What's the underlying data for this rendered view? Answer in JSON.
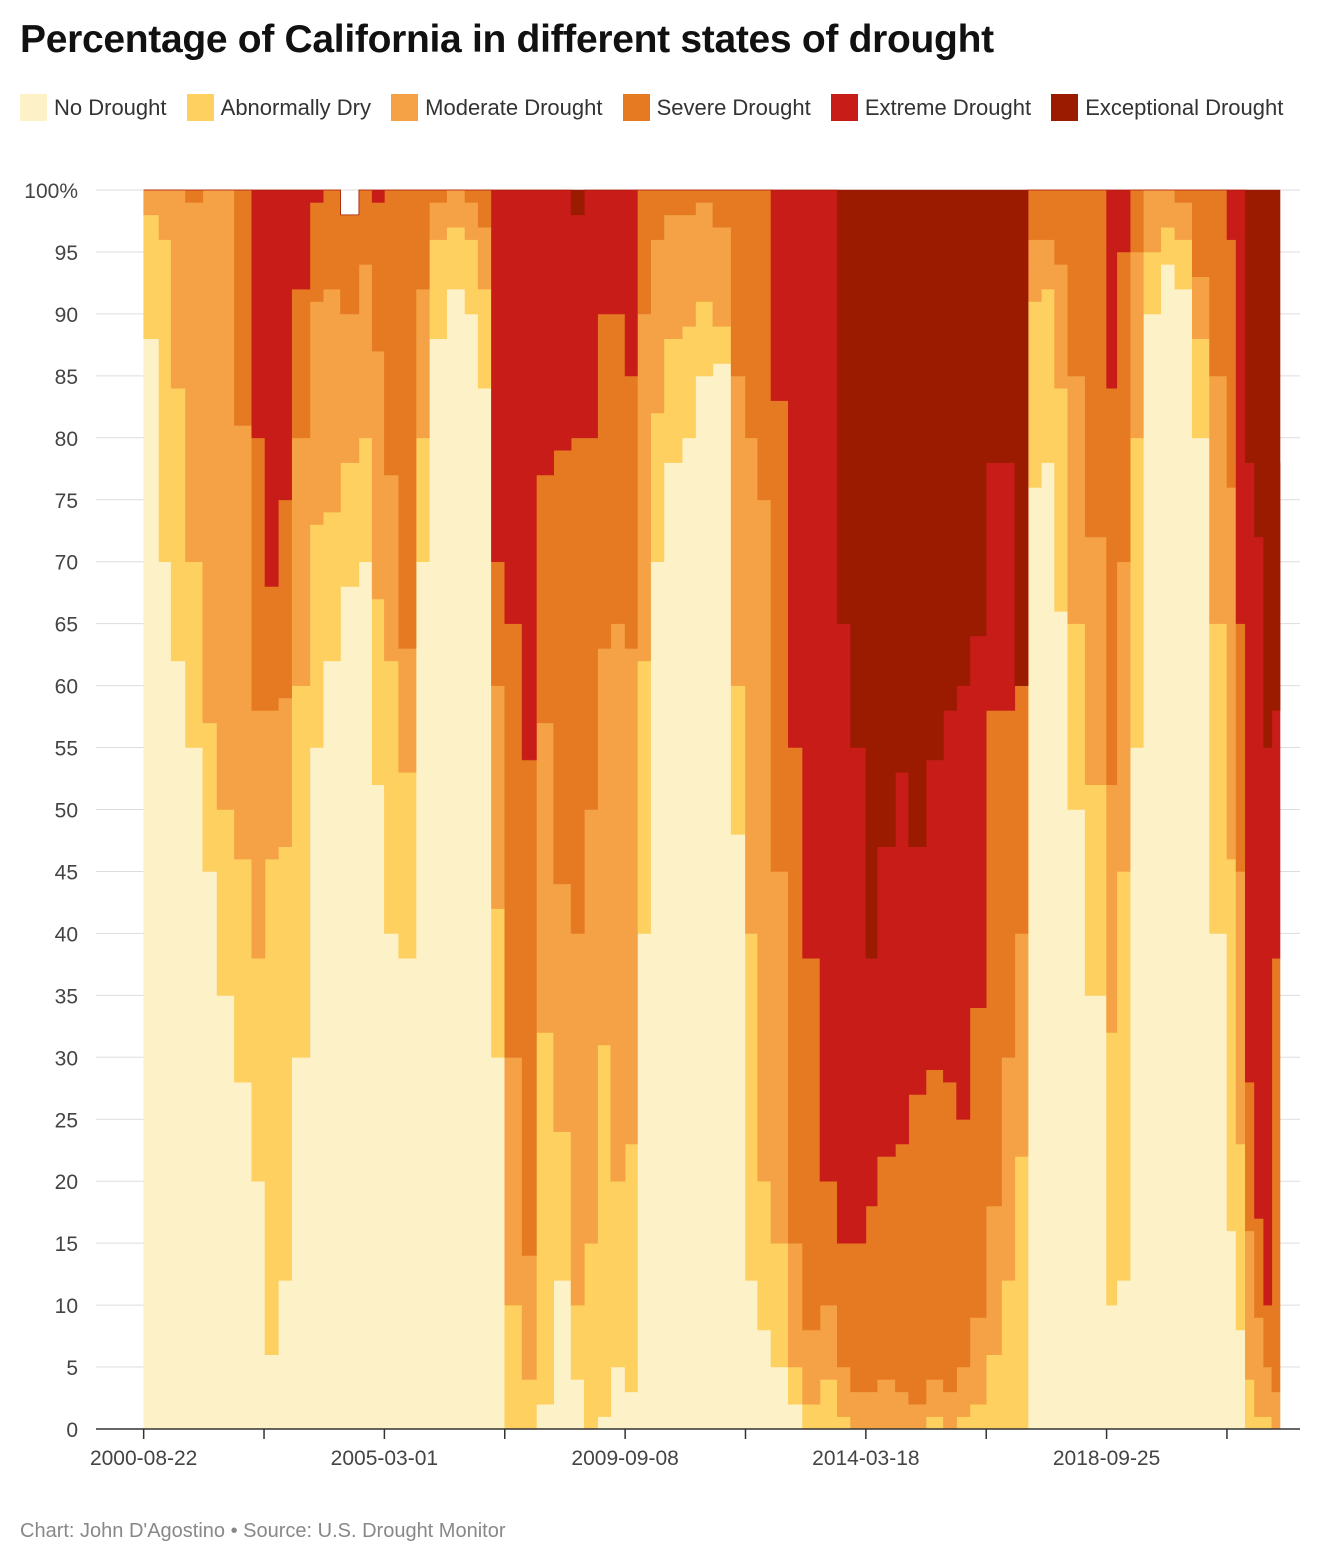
{
  "title": "Percentage of California in different states of drought",
  "footer": "Chart: John D'Agostino • Source: U.S. Drought Monitor",
  "chart_data": {
    "type": "area",
    "stacked": true,
    "title": "Percentage of California in different states of drought",
    "xlabel": "",
    "ylabel": "",
    "ylim": [
      0,
      100
    ],
    "yticks": [
      0,
      5,
      10,
      15,
      20,
      25,
      30,
      35,
      40,
      45,
      50,
      55,
      60,
      65,
      70,
      75,
      80,
      85,
      90,
      95,
      100
    ],
    "ytick_labels": [
      "0",
      "5",
      "10",
      "15",
      "20",
      "25",
      "30",
      "35",
      "40",
      "45",
      "50",
      "55",
      "60",
      "65",
      "70",
      "75",
      "80",
      "85",
      "90",
      "95",
      "100%"
    ],
    "xlim": [
      "2000-01-04",
      "2021-12-28"
    ],
    "xtick_labels": [
      "2000-08-22",
      "2005-03-01",
      "2009-09-08",
      "2014-03-18",
      "2018-09-25"
    ],
    "xtick_marks": [
      "2000-08-22",
      "2002-11-26",
      "2005-03-01",
      "2007-06-05",
      "2009-09-08",
      "2011-12-13",
      "2014-03-18",
      "2016-06-21",
      "2018-09-25",
      "2020-12-29"
    ],
    "grid": true,
    "legend_position": "top",
    "x": [
      "2000-08-22",
      "2000-12-05",
      "2001-02-27",
      "2001-06-05",
      "2001-10-02",
      "2002-01-08",
      "2002-05-07",
      "2002-09-03",
      "2002-12-03",
      "2003-03-04",
      "2003-06-03",
      "2003-10-07",
      "2004-01-06",
      "2004-05-04",
      "2004-09-07",
      "2004-12-07",
      "2005-03-01",
      "2005-06-07",
      "2005-10-04",
      "2006-01-03",
      "2006-05-02",
      "2006-09-05",
      "2006-12-05",
      "2007-03-06",
      "2007-06-05",
      "2007-10-02",
      "2008-01-08",
      "2008-05-06",
      "2008-09-02",
      "2008-12-02",
      "2009-03-03",
      "2009-06-02",
      "2009-09-08",
      "2009-12-01",
      "2010-03-02",
      "2010-06-01",
      "2010-10-05",
      "2011-01-04",
      "2011-05-03",
      "2011-09-06",
      "2011-12-13",
      "2012-03-06",
      "2012-06-05",
      "2012-10-02",
      "2013-01-08",
      "2013-05-07",
      "2013-09-03",
      "2013-12-03",
      "2014-03-18",
      "2014-06-03",
      "2014-10-07",
      "2015-01-06",
      "2015-05-05",
      "2015-09-01",
      "2015-12-01",
      "2016-03-01",
      "2016-06-21",
      "2016-10-04",
      "2017-01-03",
      "2017-04-04",
      "2017-07-04",
      "2017-10-03",
      "2018-01-02",
      "2018-05-01",
      "2018-09-25",
      "2018-12-04",
      "2019-03-05",
      "2019-06-04",
      "2019-10-01",
      "2020-01-07",
      "2020-05-05",
      "2020-09-01",
      "2020-12-29",
      "2021-03-02",
      "2021-05-04",
      "2021-07-06",
      "2021-09-07",
      "2021-11-02",
      "2021-12-28"
    ],
    "series": [
      {
        "name": "No Drought",
        "color": "#fdf1c7",
        "values": [
          88,
          70,
          62,
          55,
          45,
          35,
          28,
          20,
          6,
          12,
          30,
          55,
          62,
          68,
          70,
          52,
          40,
          38,
          70,
          88,
          92,
          90,
          84,
          30,
          0,
          0,
          2,
          12,
          4,
          0,
          1,
          5,
          3,
          40,
          70,
          78,
          80,
          85,
          86,
          48,
          12,
          8,
          5,
          2,
          0,
          0,
          0,
          0,
          0,
          0,
          0,
          0,
          0,
          0,
          0,
          0,
          0,
          0,
          0,
          76,
          78,
          66,
          50,
          35,
          10,
          12,
          55,
          90,
          94,
          92,
          80,
          40,
          16,
          8,
          0,
          0,
          0,
          0,
          0
        ]
      },
      {
        "name": "Abnormally Dry",
        "color": "#fdd060",
        "values": [
          10,
          26,
          22,
          15,
          12,
          15,
          18,
          18,
          40,
          35,
          30,
          18,
          12,
          10,
          10,
          15,
          22,
          15,
          10,
          8,
          5,
          6,
          8,
          12,
          10,
          4,
          30,
          12,
          6,
          15,
          30,
          15,
          20,
          22,
          12,
          10,
          9,
          6,
          3,
          12,
          28,
          12,
          10,
          3,
          2,
          4,
          1,
          0,
          0,
          0,
          0,
          0,
          1,
          0,
          1,
          2,
          6,
          12,
          22,
          15,
          14,
          18,
          15,
          17,
          22,
          33,
          25,
          5,
          3,
          4,
          8,
          25,
          30,
          15,
          4,
          1,
          1,
          0,
          0
        ]
      },
      {
        "name": "Moderate Drought",
        "color": "#f4a245",
        "values": [
          2,
          4,
          16,
          29,
          43,
          50,
          35,
          20,
          12,
          12,
          20,
          18,
          18,
          12,
          14,
          20,
          15,
          10,
          12,
          3,
          3,
          3,
          5,
          18,
          20,
          10,
          25,
          20,
          30,
          35,
          32,
          45,
          40,
          28,
          14,
          10,
          9,
          8,
          8,
          25,
          40,
          55,
          30,
          10,
          6,
          6,
          4,
          3,
          3,
          4,
          3,
          2,
          3,
          3,
          4,
          7,
          12,
          18,
          18,
          5,
          4,
          10,
          20,
          20,
          20,
          25,
          15,
          5,
          3,
          3,
          5,
          20,
          30,
          22,
          12,
          8,
          4,
          3,
          3
        ]
      },
      {
        "name": "Severe Drought",
        "color": "#e57a22",
        "values": [
          0,
          0,
          0,
          1,
          0,
          0,
          19,
          22,
          10,
          16,
          12,
          8,
          8,
          8,
          6,
          12,
          23,
          37,
          8,
          1,
          0,
          1,
          3,
          10,
          35,
          40,
          20,
          35,
          40,
          30,
          27,
          25,
          22,
          10,
          4,
          2,
          2,
          1,
          3,
          15,
          20,
          25,
          38,
          40,
          30,
          10,
          10,
          12,
          15,
          18,
          20,
          25,
          25,
          25,
          20,
          25,
          40,
          28,
          20,
          4,
          4,
          6,
          15,
          28,
          32,
          25,
          5,
          0,
          0,
          1,
          7,
          15,
          20,
          20,
          12,
          8,
          5,
          35,
          35
        ]
      },
      {
        "name": "Extreme Drought",
        "color": "#c81c18",
        "values": [
          0,
          0,
          0,
          0,
          0,
          0,
          0,
          20,
          32,
          25,
          8,
          1,
          0,
          0,
          0,
          1,
          0,
          0,
          0,
          0,
          0,
          0,
          0,
          30,
          35,
          46,
          23,
          21,
          18,
          20,
          10,
          10,
          15,
          0,
          0,
          0,
          0,
          0,
          0,
          0,
          0,
          0,
          17,
          45,
          62,
          80,
          50,
          40,
          20,
          25,
          30,
          20,
          25,
          30,
          35,
          30,
          20,
          20,
          0,
          0,
          0,
          0,
          0,
          0,
          16,
          5,
          0,
          0,
          0,
          0,
          0,
          0,
          4,
          35,
          50,
          55,
          45,
          20,
          40
        ]
      },
      {
        "name": "Exceptional Drought",
        "color": "#9b1b00",
        "values": [
          0,
          0,
          0,
          0,
          0,
          0,
          0,
          0,
          0,
          0,
          0,
          0,
          0,
          0,
          0,
          0,
          0,
          0,
          0,
          0,
          0,
          0,
          0,
          0,
          0,
          0,
          0,
          0,
          2,
          0,
          0,
          0,
          0,
          0,
          0,
          0,
          0,
          0,
          0,
          0,
          0,
          0,
          0,
          0,
          0,
          0,
          35,
          45,
          62,
          53,
          47,
          53,
          46,
          42,
          40,
          36,
          22,
          22,
          40,
          0,
          0,
          0,
          0,
          0,
          0,
          0,
          0,
          0,
          0,
          0,
          0,
          0,
          0,
          0,
          22,
          28,
          45,
          42,
          22
        ]
      }
    ]
  }
}
